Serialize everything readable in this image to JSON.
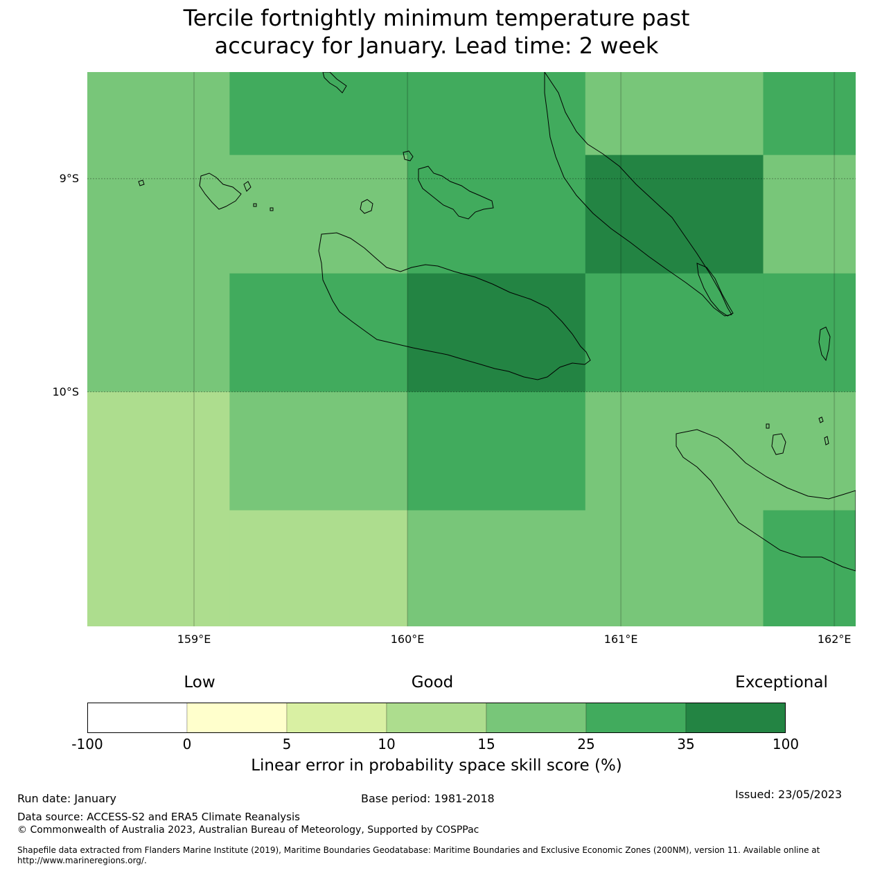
{
  "title_line1": "Tercile fortnightly minimum temperature past",
  "title_line2": "accuracy for January. Lead time: 2 week",
  "map": {
    "lon_range": [
      158.5,
      162.1
    ],
    "lat_range": [
      -11.1,
      -8.5
    ],
    "lat_ticks": [
      {
        "value": -9,
        "label": "9°S"
      },
      {
        "value": -10,
        "label": "10°S"
      }
    ],
    "lon_ticks": [
      {
        "value": 159,
        "label": "159°E"
      },
      {
        "value": 160,
        "label": "160°E"
      },
      {
        "value": 161,
        "label": "161°E"
      },
      {
        "value": 162,
        "label": "162°E"
      }
    ],
    "grid_lon_edges": [
      158.5,
      159.1667,
      160.0,
      160.8333,
      161.6667,
      162.1
    ],
    "grid_lat_edges": [
      -8.5,
      -8.8889,
      -9.4444,
      -10.0,
      -10.5556,
      -11.1
    ],
    "cell_classes": [
      [
        4,
        5,
        5,
        4,
        5
      ],
      [
        4,
        4,
        5,
        6,
        4
      ],
      [
        4,
        5,
        6,
        5,
        5
      ],
      [
        3,
        4,
        5,
        4,
        4
      ],
      [
        3,
        3,
        4,
        4,
        5
      ]
    ]
  },
  "colorbar": {
    "category_labels": {
      "low": "Low",
      "good": "Good",
      "exceptional": "Exceptional"
    },
    "bounds": [
      "-100",
      "0",
      "5",
      "10",
      "15",
      "25",
      "35",
      "100"
    ],
    "colors": [
      "#ffffff",
      "#ffffcc",
      "#d9f0a3",
      "#addd8e",
      "#78c679",
      "#41ab5d",
      "#238443"
    ],
    "title": "Linear error in probability space skill score (%)"
  },
  "footer": {
    "run_date": "Run date: January",
    "base_period": "Base period: 1981-2018",
    "issued": "Issued: 23/05/2023",
    "data_source": "Data source: ACCESS-S2 and ERA5 Climate Reanalysis",
    "copyright": "© Commonwealth of Australia 2023, Australian Bureau of Meteorology, Supported by COSPPac",
    "shapefile_line1": "Shapefile data extracted from Flanders Marine Institute (2019), Maritime Boundaries Geodatabase: Maritime Boundaries and Exclusive Economic Zones (200NM), version 11. Available online at",
    "shapefile_line2": "http://www.marineregions.org/."
  }
}
